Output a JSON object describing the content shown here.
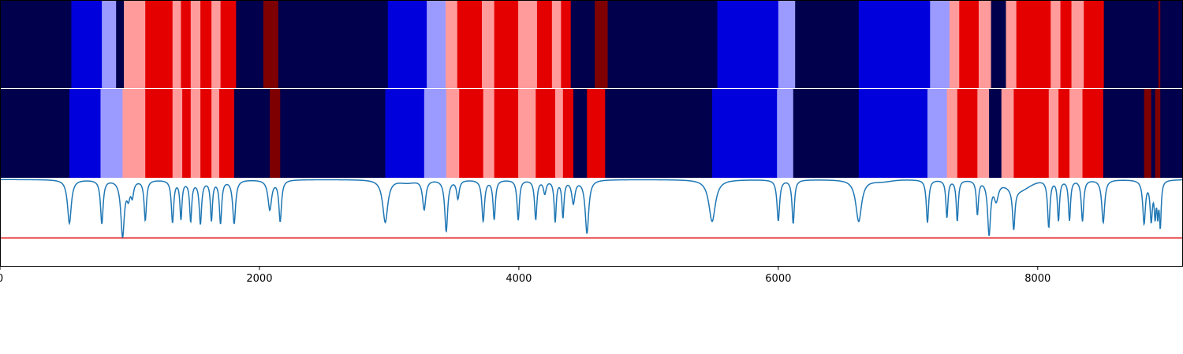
{
  "chart_data": {
    "type": "heatmap",
    "title": "",
    "xlabel": "",
    "ylabel": "",
    "xlim": [
      0,
      9120
    ],
    "xticks": [
      0,
      2000,
      4000,
      6000,
      8000
    ],
    "xtick_labels": [
      "0",
      "2000",
      "4000",
      "6000",
      "8000"
    ],
    "segment_colors": {
      "0": "#00004c",
      "1": "#0000dc",
      "2": "#9b9bff",
      "3": "#ff9b9b",
      "4": "#e50000",
      "5": "#7f0000"
    },
    "rows": [
      {
        "segments": [
          [
            0,
            550,
            0
          ],
          [
            550,
            785,
            1
          ],
          [
            785,
            895,
            2
          ],
          [
            895,
            955,
            0
          ],
          [
            955,
            1120,
            3
          ],
          [
            1120,
            1330,
            4
          ],
          [
            1330,
            1395,
            3
          ],
          [
            1395,
            1470,
            4
          ],
          [
            1470,
            1545,
            3
          ],
          [
            1545,
            1630,
            4
          ],
          [
            1630,
            1700,
            3
          ],
          [
            1700,
            1820,
            4
          ],
          [
            1820,
            2030,
            0
          ],
          [
            2030,
            2145,
            5
          ],
          [
            2145,
            2990,
            0
          ],
          [
            2990,
            3290,
            1
          ],
          [
            3290,
            3435,
            2
          ],
          [
            3435,
            3525,
            3
          ],
          [
            3525,
            3715,
            4
          ],
          [
            3715,
            3810,
            3
          ],
          [
            3810,
            3995,
            4
          ],
          [
            3995,
            4140,
            3
          ],
          [
            4140,
            4255,
            4
          ],
          [
            4255,
            4325,
            3
          ],
          [
            4325,
            4400,
            4
          ],
          [
            4400,
            4585,
            0
          ],
          [
            4585,
            4685,
            5
          ],
          [
            4685,
            5530,
            0
          ],
          [
            5530,
            6000,
            1
          ],
          [
            6000,
            6130,
            2
          ],
          [
            6130,
            6620,
            0
          ],
          [
            6620,
            7170,
            1
          ],
          [
            7170,
            7320,
            2
          ],
          [
            7320,
            7395,
            3
          ],
          [
            7395,
            7545,
            4
          ],
          [
            7545,
            7640,
            3
          ],
          [
            7640,
            7755,
            0
          ],
          [
            7755,
            7835,
            3
          ],
          [
            7835,
            8100,
            4
          ],
          [
            8100,
            8175,
            3
          ],
          [
            8175,
            8260,
            4
          ],
          [
            8260,
            8355,
            3
          ],
          [
            8355,
            8510,
            4
          ],
          [
            8510,
            8930,
            0
          ],
          [
            8930,
            8945,
            5
          ],
          [
            8945,
            9120,
            0
          ]
        ]
      },
      {
        "segments": [
          [
            0,
            535,
            0
          ],
          [
            535,
            775,
            1
          ],
          [
            775,
            945,
            2
          ],
          [
            945,
            1120,
            3
          ],
          [
            1120,
            1330,
            4
          ],
          [
            1330,
            1405,
            3
          ],
          [
            1405,
            1470,
            4
          ],
          [
            1470,
            1545,
            3
          ],
          [
            1545,
            1630,
            4
          ],
          [
            1630,
            1690,
            3
          ],
          [
            1690,
            1805,
            4
          ],
          [
            1805,
            2080,
            0
          ],
          [
            2080,
            2160,
            5
          ],
          [
            2160,
            2970,
            0
          ],
          [
            2970,
            3270,
            1
          ],
          [
            3270,
            3440,
            2
          ],
          [
            3440,
            3540,
            3
          ],
          [
            3540,
            3725,
            4
          ],
          [
            3725,
            3810,
            3
          ],
          [
            3810,
            3995,
            4
          ],
          [
            3995,
            4130,
            3
          ],
          [
            4130,
            4280,
            4
          ],
          [
            4280,
            4340,
            3
          ],
          [
            4340,
            4420,
            4
          ],
          [
            4420,
            4525,
            0
          ],
          [
            4525,
            4665,
            4
          ],
          [
            4665,
            5490,
            0
          ],
          [
            5490,
            5990,
            1
          ],
          [
            5990,
            6115,
            2
          ],
          [
            6115,
            6620,
            0
          ],
          [
            6620,
            7150,
            1
          ],
          [
            7150,
            7300,
            2
          ],
          [
            7300,
            7380,
            3
          ],
          [
            7380,
            7535,
            4
          ],
          [
            7535,
            7625,
            3
          ],
          [
            7625,
            7720,
            0
          ],
          [
            7720,
            7815,
            3
          ],
          [
            7815,
            8085,
            4
          ],
          [
            8085,
            8160,
            3
          ],
          [
            8160,
            8245,
            4
          ],
          [
            8245,
            8345,
            3
          ],
          [
            8345,
            8505,
            4
          ],
          [
            8505,
            8820,
            0
          ],
          [
            8820,
            8875,
            5
          ],
          [
            8875,
            8905,
            0
          ],
          [
            8905,
            8945,
            5
          ],
          [
            8945,
            9120,
            0
          ]
        ]
      }
    ],
    "line_panel": {
      "ylim": [
        0,
        1
      ],
      "threshold": 0.32,
      "threshold_color": "#dd0000",
      "line_color": "#1f77b4",
      "baseline": 0.99,
      "spikes": [
        [
          535,
          0.49,
          26
        ],
        [
          785,
          0.49,
          18
        ],
        [
          945,
          0.35,
          24
        ],
        [
          990,
          0.82,
          22
        ],
        [
          1020,
          0.83,
          18
        ],
        [
          1120,
          0.53,
          16
        ],
        [
          1330,
          0.51,
          16
        ],
        [
          1395,
          0.56,
          14
        ],
        [
          1470,
          0.54,
          14
        ],
        [
          1545,
          0.51,
          16
        ],
        [
          1630,
          0.54,
          14
        ],
        [
          1700,
          0.5,
          16
        ],
        [
          1805,
          0.49,
          20
        ],
        [
          2080,
          0.65,
          25
        ],
        [
          2160,
          0.52,
          18
        ],
        [
          2970,
          0.5,
          35
        ],
        [
          3270,
          0.65,
          22
        ],
        [
          3440,
          0.4,
          20
        ],
        [
          3530,
          0.78,
          18
        ],
        [
          3725,
          0.52,
          18
        ],
        [
          3810,
          0.54,
          16
        ],
        [
          3995,
          0.53,
          16
        ],
        [
          4130,
          0.54,
          16
        ],
        [
          4200,
          0.84,
          18
        ],
        [
          4280,
          0.52,
          14
        ],
        [
          4340,
          0.57,
          14
        ],
        [
          4420,
          0.73,
          22
        ],
        [
          4525,
          0.38,
          24
        ],
        [
          5490,
          0.51,
          45
        ],
        [
          6000,
          0.52,
          18
        ],
        [
          6115,
          0.49,
          16
        ],
        [
          6620,
          0.51,
          40
        ],
        [
          7150,
          0.5,
          16
        ],
        [
          7300,
          0.56,
          14
        ],
        [
          7380,
          0.52,
          14
        ],
        [
          7535,
          0.6,
          14
        ],
        [
          7625,
          0.38,
          20
        ],
        [
          7680,
          0.78,
          30
        ],
        [
          7815,
          0.53,
          16
        ],
        [
          8085,
          0.45,
          16
        ],
        [
          8160,
          0.53,
          14
        ],
        [
          8245,
          0.53,
          14
        ],
        [
          8345,
          0.52,
          16
        ],
        [
          8505,
          0.5,
          20
        ],
        [
          8820,
          0.5,
          18
        ],
        [
          8875,
          0.55,
          16
        ],
        [
          8905,
          0.62,
          12
        ],
        [
          8925,
          0.66,
          10
        ],
        [
          8945,
          0.48,
          12
        ]
      ],
      "bumps": [
        [
          7850,
          0.12,
          120
        ],
        [
          3140,
          0.03,
          80
        ],
        [
          6800,
          0.02,
          100
        ],
        [
          1500,
          0.02,
          120
        ]
      ]
    }
  }
}
